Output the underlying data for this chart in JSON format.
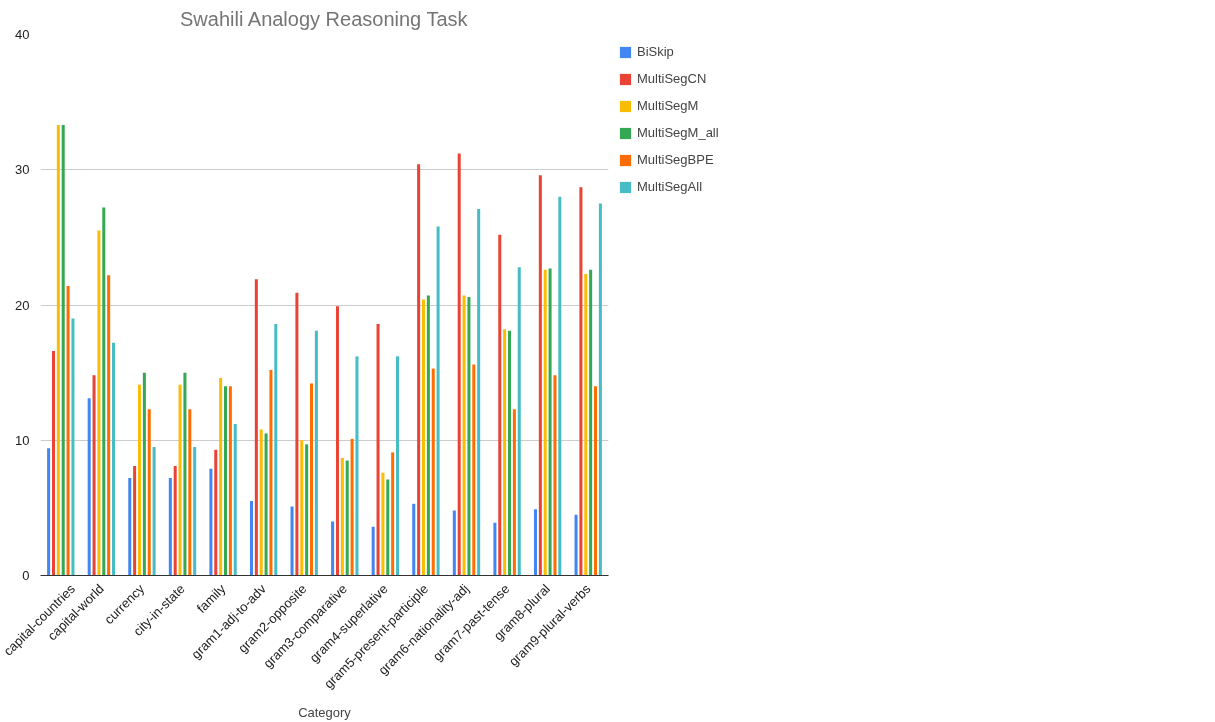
{
  "chart_data": {
    "type": "bar",
    "title": "Swahili Analogy Reasoning Task",
    "xlabel": "Category",
    "categories": [
      "capital-countries",
      "capital-world",
      "currency",
      "city-in-state",
      "family",
      "gram1-adj-to-adv",
      "gram2-opposite",
      "gram3-comparative",
      "gram4-superlative",
      "gram5-present-participle",
      "gram6-nationality-adj",
      "gram7-past-tense",
      "gram8-plural",
      "gram9-plural-verbs"
    ],
    "series": [
      {
        "name": "BiSkip",
        "color": "#4285f4",
        "values": [
          9.4,
          13.1,
          7.2,
          7.2,
          7.9,
          5.5,
          5.1,
          4.0,
          3.6,
          5.3,
          4.8,
          3.9,
          4.9,
          4.5
        ]
      },
      {
        "name": "MultiSegCN",
        "color": "#ea4335",
        "values": [
          16.6,
          14.8,
          8.1,
          8.1,
          9.3,
          21.9,
          20.9,
          19.9,
          18.6,
          30.4,
          31.2,
          25.2,
          29.6,
          28.7
        ]
      },
      {
        "name": "MultiSegM",
        "color": "#fbbc04",
        "values": [
          33.3,
          25.5,
          14.1,
          14.1,
          14.6,
          10.8,
          10.0,
          8.7,
          7.6,
          20.4,
          20.7,
          18.2,
          22.6,
          22.3
        ]
      },
      {
        "name": "MultiSegM_all",
        "color": "#34a853",
        "values": [
          33.3,
          27.2,
          15.0,
          15.0,
          14.0,
          10.5,
          9.7,
          8.5,
          7.1,
          20.7,
          20.6,
          18.1,
          22.7,
          22.6
        ]
      },
      {
        "name": "MultiSegBPE",
        "color": "#ff6d01",
        "values": [
          21.4,
          22.2,
          12.3,
          12.3,
          14.0,
          15.2,
          14.2,
          10.1,
          9.1,
          15.3,
          15.6,
          12.3,
          14.8,
          14.0
        ]
      },
      {
        "name": "MultiSegAll",
        "color": "#46bdc6",
        "values": [
          19.0,
          17.2,
          9.5,
          9.5,
          11.2,
          18.6,
          18.1,
          16.2,
          16.2,
          25.8,
          27.1,
          22.8,
          28.0,
          27.5
        ]
      }
    ],
    "ylim": [
      0,
      40
    ],
    "yticks": [
      0,
      10,
      20,
      30,
      40
    ],
    "grid": "y",
    "legend": "right"
  }
}
